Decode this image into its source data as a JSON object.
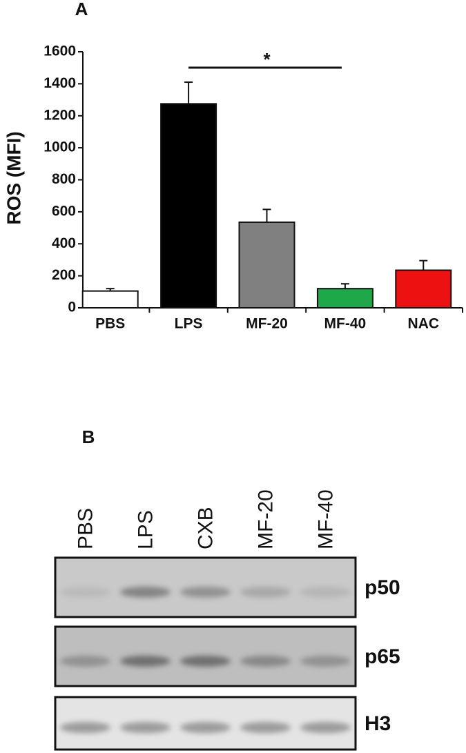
{
  "chart_data": {
    "type": "bar",
    "panel": "A",
    "ylabel": "ROS (MFI)",
    "categories": [
      "PBS",
      "LPS",
      "MF-20",
      "MF-40",
      "NAC"
    ],
    "values": [
      105,
      1275,
      535,
      120,
      235
    ],
    "errors": [
      15,
      135,
      80,
      30,
      60
    ],
    "colors": [
      "#ffffff",
      "#000000",
      "#808080",
      "#1fa84a",
      "#ee1111"
    ],
    "ylim": [
      0,
      1600
    ],
    "yticks": [
      0,
      200,
      400,
      600,
      800,
      1000,
      1200,
      1400,
      1600
    ],
    "annotation": "*"
  },
  "blot": {
    "panel": "B",
    "lanes": [
      "PBS",
      "LPS",
      "CXB",
      "MF-20",
      "MF-40"
    ],
    "rows": [
      "p50",
      "p65",
      "H3"
    ]
  }
}
